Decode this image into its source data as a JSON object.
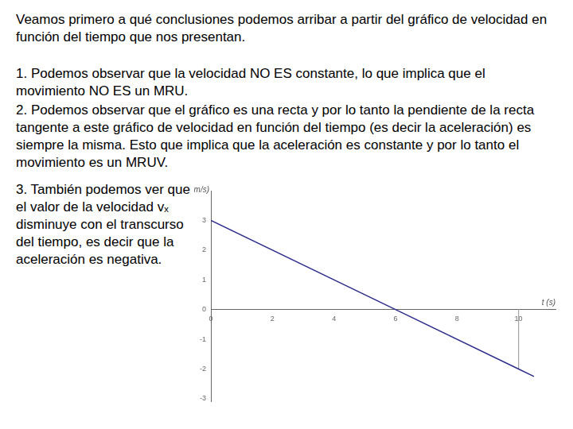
{
  "paragraphs": [
    "Veamos primero a qué conclusiones podemos arribar a partir del gráfico de velocidad en función del tiempo que nos presentan.",
    "1. Podemos observar que la velocidad NO ES constante, lo que implica que el movimiento NO ES un MRU.",
    "2. Podemos observar que el gráfico es una recta y por lo tanto la pendiente de la recta tangente a este gráfico de velocidad en función del tiempo (es decir la aceleración) es siempre la misma. Esto que implica que la aceleración es constante y por lo tanto el movimiento es un MRUV.",
    "3. También podemos ver que el valor de la velocidad vₓ disminuye con el transcurso del tiempo, es decir que la aceleración es negativa."
  ],
  "chart_data": {
    "type": "line",
    "xlabel": "t (s)",
    "ylabel": "vₓ (m/s)",
    "x": [
      0,
      6,
      10,
      10.5
    ],
    "values": [
      3,
      0,
      -2,
      -2.25
    ],
    "color": "#2e2e8c",
    "xlim": [
      0,
      11.2
    ],
    "ylim": [
      -3.1,
      4
    ],
    "xticks": [
      0,
      2,
      4,
      6,
      8,
      10
    ],
    "yticks": [
      -3,
      -2,
      -1,
      0,
      1,
      2,
      3
    ],
    "grid": false,
    "guide_lines": [
      {
        "x": [
          10,
          10
        ],
        "values": [
          0,
          -2
        ],
        "color": "#a8a8a8"
      }
    ]
  }
}
